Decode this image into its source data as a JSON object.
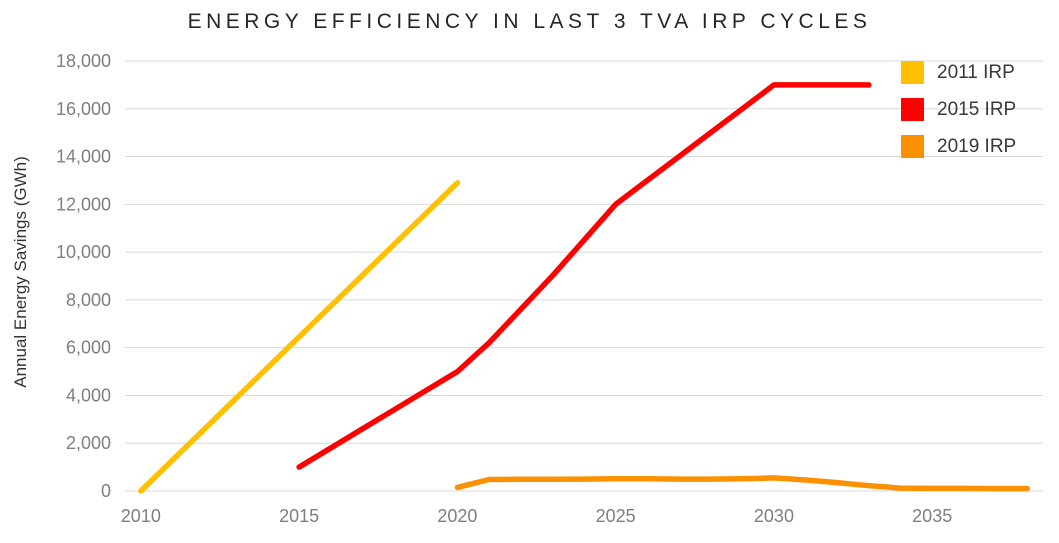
{
  "chart_data": {
    "type": "line",
    "title": "ENERGY EFFICIENCY IN LAST 3 TVA IRP CYCLES",
    "xlabel": "",
    "ylabel": "Annual Energy Savings (GWh)",
    "xlim": [
      2009.5,
      2038.5
    ],
    "ylim": [
      0,
      18000
    ],
    "x_ticks": [
      2010,
      2015,
      2020,
      2025,
      2030,
      2035
    ],
    "x_tick_labels": [
      "2010",
      "2015",
      "2020",
      "2025",
      "2030",
      "2035"
    ],
    "y_ticks": [
      0,
      2000,
      4000,
      6000,
      8000,
      10000,
      12000,
      14000,
      16000,
      18000
    ],
    "y_tick_labels": [
      "0",
      "2,000",
      "4,000",
      "6,000",
      "8,000",
      "10,000",
      "12,000",
      "14,000",
      "16,000",
      "18,000"
    ],
    "grid": "horizontal",
    "gridline_color": "#D9D9D9",
    "tick_label_color": "#7F7F7F",
    "legend_position": "top-right",
    "series": [
      {
        "name": "2011 IRP",
        "color": "#FFC000",
        "points": [
          [
            2010,
            0
          ],
          [
            2020,
            12900
          ]
        ]
      },
      {
        "name": "2015 IRP",
        "color": "#FF0000",
        "points": [
          [
            2015,
            1000
          ],
          [
            2016,
            1800
          ],
          [
            2017,
            2600
          ],
          [
            2018,
            3400
          ],
          [
            2019,
            4200
          ],
          [
            2020,
            5000
          ],
          [
            2021,
            6200
          ],
          [
            2022,
            7600
          ],
          [
            2023,
            9000
          ],
          [
            2024,
            10500
          ],
          [
            2025,
            12000
          ],
          [
            2026,
            13000
          ],
          [
            2027,
            14000
          ],
          [
            2028,
            15000
          ],
          [
            2029,
            16000
          ],
          [
            2030,
            17000
          ],
          [
            2031,
            17000
          ],
          [
            2032,
            17000
          ],
          [
            2033,
            17000
          ]
        ]
      },
      {
        "name": "2019 IRP",
        "color": "#FB9100",
        "points": [
          [
            2020,
            150
          ],
          [
            2021,
            480
          ],
          [
            2022,
            490
          ],
          [
            2023,
            490
          ],
          [
            2024,
            500
          ],
          [
            2025,
            510
          ],
          [
            2026,
            510
          ],
          [
            2027,
            500
          ],
          [
            2028,
            500
          ],
          [
            2029,
            510
          ],
          [
            2030,
            550
          ],
          [
            2031,
            460
          ],
          [
            2032,
            350
          ],
          [
            2033,
            220
          ],
          [
            2034,
            120
          ],
          [
            2035,
            110
          ],
          [
            2036,
            110
          ],
          [
            2037,
            100
          ],
          [
            2038,
            100
          ]
        ]
      }
    ]
  }
}
